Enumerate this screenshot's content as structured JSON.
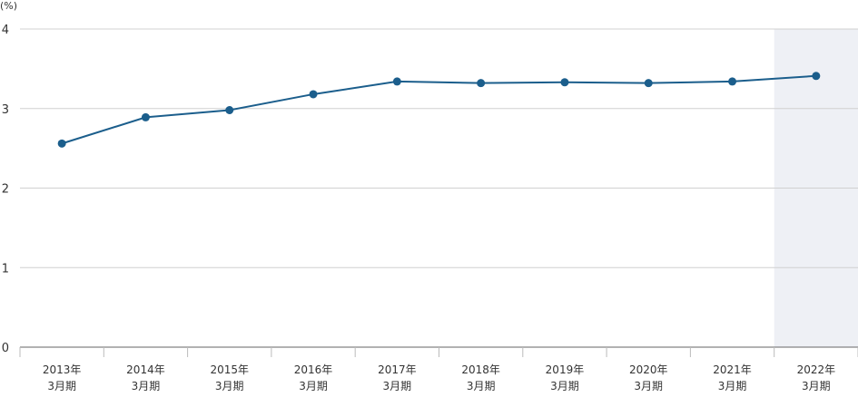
{
  "chart_data": {
    "type": "line",
    "unit_label": "(%)",
    "categories": [
      [
        "2013年",
        "3月期"
      ],
      [
        "2014年",
        "3月期"
      ],
      [
        "2015年",
        "3月期"
      ],
      [
        "2016年",
        "3月期"
      ],
      [
        "2017年",
        "3月期"
      ],
      [
        "2018年",
        "3月期"
      ],
      [
        "2019年",
        "3月期"
      ],
      [
        "2020年",
        "3月期"
      ],
      [
        "2021年",
        "3月期"
      ],
      [
        "2022年",
        "3月期"
      ]
    ],
    "values": [
      2.56,
      2.89,
      2.98,
      3.18,
      3.34,
      3.32,
      3.33,
      3.32,
      3.34,
      3.41
    ],
    "ylim": [
      0,
      4
    ],
    "yticks": [
      0,
      1,
      2,
      3,
      4
    ],
    "grid": true,
    "highlight_category_index": 9,
    "colors": {
      "line": "#1b5e8c",
      "marker": "#1b5e8c",
      "grid": "#d0d0d0",
      "axis": "#666666",
      "highlight": "#eef0f5"
    }
  }
}
